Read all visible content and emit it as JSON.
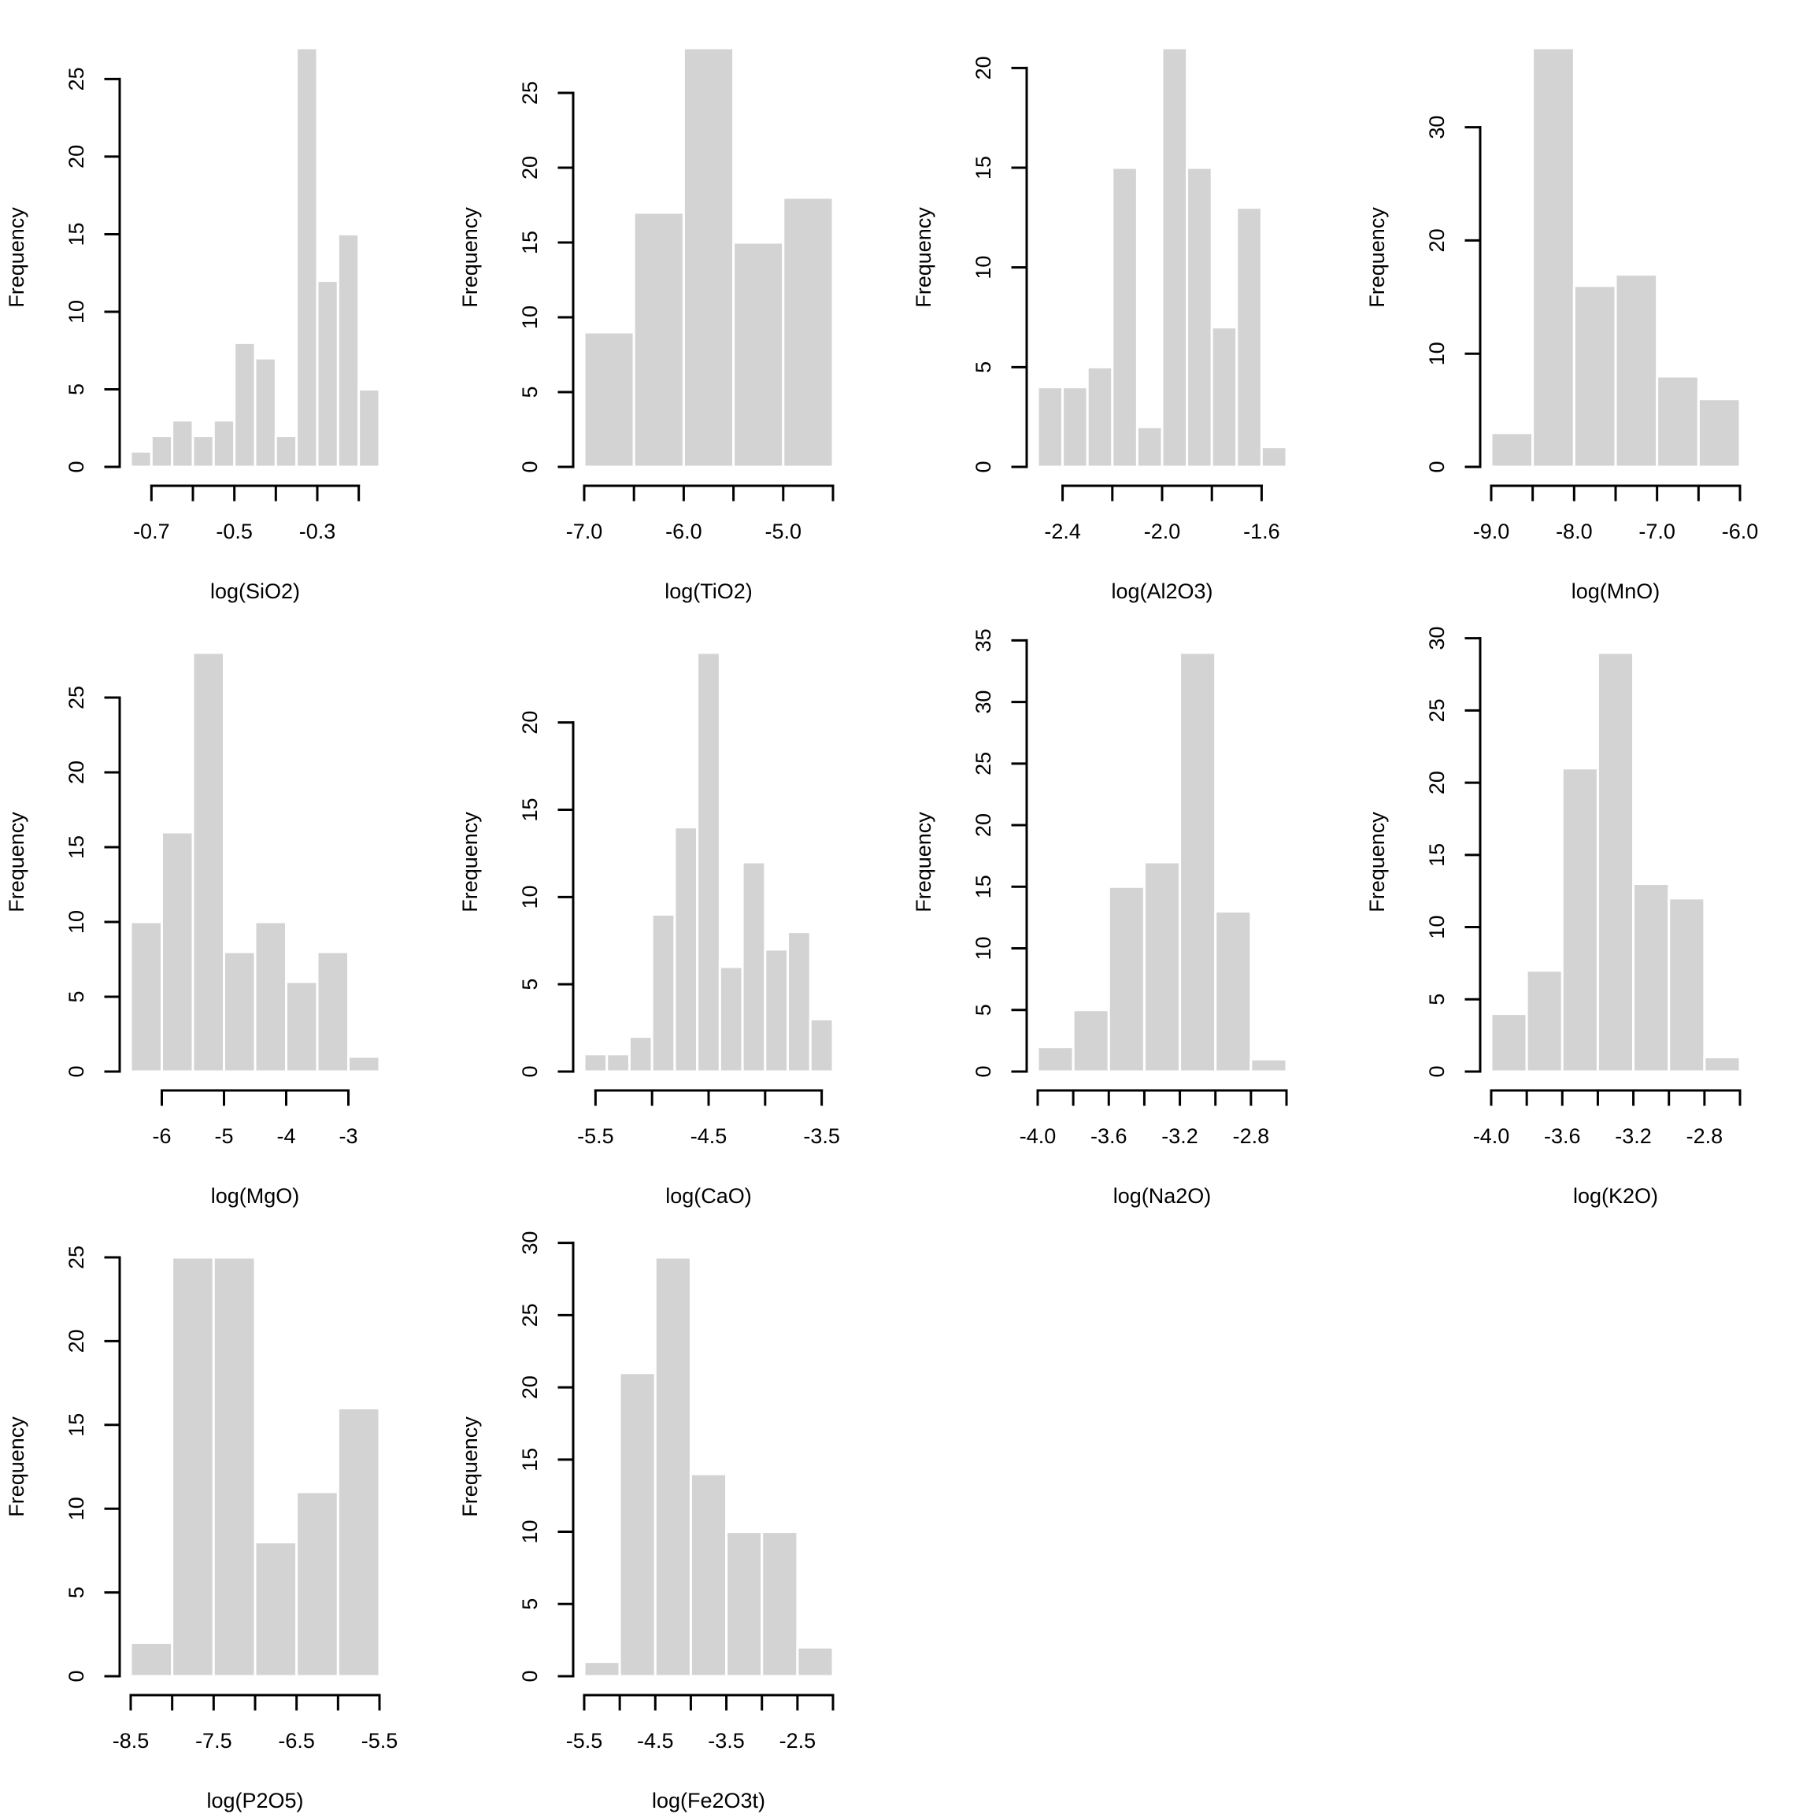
{
  "figure": {
    "layout": "3x4 grid of histograms",
    "bar_color": "#d3d3d3",
    "bar_border_color": "#ffffff",
    "axis_color": "#000000"
  },
  "chart_data": [
    {
      "type": "bar",
      "subtype": "histogram",
      "title": "",
      "xlabel": "log(SiO2)",
      "ylabel": "Frequency",
      "bin_edges": [
        -0.75,
        -0.7,
        -0.65,
        -0.6,
        -0.55,
        -0.5,
        -0.45,
        -0.4,
        -0.35,
        -0.3,
        -0.25,
        -0.2,
        -0.15
      ],
      "values": [
        1,
        2,
        3,
        2,
        3,
        8,
        7,
        2,
        27,
        12,
        15,
        5
      ],
      "x_ticks": [
        -0.7,
        -0.6,
        -0.5,
        -0.4,
        -0.3,
        -0.2
      ],
      "x_tick_labels": [
        "-0.7",
        "",
        "-0.5",
        "",
        "-0.3",
        ""
      ],
      "y_ticks": [
        0,
        5,
        10,
        15,
        20,
        25
      ],
      "y_tick_labels": [
        "0",
        "5",
        "10",
        "15",
        "20",
        "25"
      ],
      "xlim": [
        -0.75,
        -0.15
      ],
      "ylim": [
        0,
        27
      ],
      "grid": false
    },
    {
      "type": "bar",
      "subtype": "histogram",
      "title": "",
      "xlabel": "log(TiO2)",
      "ylabel": "Frequency",
      "bin_edges": [
        -7.0,
        -6.5,
        -6.0,
        -5.5,
        -5.0,
        -4.5
      ],
      "values": [
        9,
        17,
        28,
        15,
        18
      ],
      "x_ticks": [
        -7.0,
        -6.5,
        -6.0,
        -5.5,
        -5.0,
        -4.5
      ],
      "x_tick_labels": [
        "-7.0",
        "",
        "-6.0",
        "",
        "-5.0",
        ""
      ],
      "y_ticks": [
        0,
        5,
        10,
        15,
        20,
        25
      ],
      "y_tick_labels": [
        "0",
        "5",
        "10",
        "15",
        "20",
        "25"
      ],
      "xlim": [
        -7.0,
        -4.5
      ],
      "ylim": [
        0,
        28
      ],
      "grid": false
    },
    {
      "type": "bar",
      "subtype": "histogram",
      "title": "",
      "xlabel": "log(Al2O3)",
      "ylabel": "Frequency",
      "bin_edges": [
        -2.5,
        -2.4,
        -2.3,
        -2.2,
        -2.1,
        -2.0,
        -1.9,
        -1.8,
        -1.7,
        -1.6,
        -1.5
      ],
      "values": [
        4,
        4,
        5,
        15,
        2,
        21,
        15,
        7,
        13,
        1
      ],
      "x_ticks": [
        -2.4,
        -2.2,
        -2.0,
        -1.8,
        -1.6
      ],
      "x_tick_labels": [
        "-2.4",
        "",
        "-2.0",
        "",
        "-1.6"
      ],
      "y_ticks": [
        0,
        5,
        10,
        15,
        20
      ],
      "y_tick_labels": [
        "0",
        "5",
        "10",
        "15",
        "20"
      ],
      "xlim": [
        -2.5,
        -1.5
      ],
      "ylim": [
        0,
        21
      ],
      "grid": false
    },
    {
      "type": "bar",
      "subtype": "histogram",
      "title": "",
      "xlabel": "log(MnO)",
      "ylabel": "Frequency",
      "bin_edges": [
        -9.0,
        -8.5,
        -8.0,
        -7.5,
        -7.0,
        -6.5,
        -6.0
      ],
      "values": [
        3,
        37,
        16,
        17,
        8,
        6
      ],
      "x_ticks": [
        -9.0,
        -8.5,
        -8.0,
        -7.5,
        -7.0,
        -6.5,
        -6.0
      ],
      "x_tick_labels": [
        "-9.0",
        "",
        "-8.0",
        "",
        "-7.0",
        "",
        "-6.0"
      ],
      "y_ticks": [
        0,
        10,
        20,
        30
      ],
      "y_tick_labels": [
        "0",
        "10",
        "20",
        "30"
      ],
      "xlim": [
        -9.0,
        -6.0
      ],
      "ylim": [
        0,
        37
      ],
      "grid": false
    },
    {
      "type": "bar",
      "subtype": "histogram",
      "title": "",
      "xlabel": "log(MgO)",
      "ylabel": "Frequency",
      "bin_edges": [
        -6.5,
        -6.0,
        -5.5,
        -5.0,
        -4.5,
        -4.0,
        -3.5,
        -3.0,
        -2.5
      ],
      "values": [
        10,
        16,
        28,
        8,
        10,
        6,
        8,
        1
      ],
      "x_ticks": [
        -6,
        -5,
        -4,
        -3
      ],
      "x_tick_labels": [
        "-6",
        "-5",
        "-4",
        "-3"
      ],
      "y_ticks": [
        0,
        5,
        10,
        15,
        20,
        25
      ],
      "y_tick_labels": [
        "0",
        "5",
        "10",
        "15",
        "20",
        "25"
      ],
      "xlim": [
        -6.5,
        -2.5
      ],
      "ylim": [
        0,
        28
      ],
      "grid": false
    },
    {
      "type": "bar",
      "subtype": "histogram",
      "title": "",
      "xlabel": "log(CaO)",
      "ylabel": "Frequency",
      "bin_edges": [
        -5.6,
        -5.4,
        -5.2,
        -5.0,
        -4.8,
        -4.6,
        -4.4,
        -4.2,
        -4.0,
        -3.8,
        -3.6,
        -3.4
      ],
      "values": [
        1,
        1,
        2,
        9,
        14,
        24,
        6,
        12,
        7,
        8,
        3
      ],
      "x_ticks": [
        -5.5,
        -5.0,
        -4.5,
        -4.0,
        -3.5
      ],
      "x_tick_labels": [
        "-5.5",
        "",
        "-4.5",
        "",
        "-3.5"
      ],
      "y_ticks": [
        0,
        5,
        10,
        15,
        20
      ],
      "y_tick_labels": [
        "0",
        "5",
        "10",
        "15",
        "20"
      ],
      "xlim": [
        -5.6,
        -3.4
      ],
      "ylim": [
        0,
        24
      ],
      "grid": false
    },
    {
      "type": "bar",
      "subtype": "histogram",
      "title": "",
      "xlabel": "log(Na2O)",
      "ylabel": "Frequency",
      "bin_edges": [
        -4.0,
        -3.8,
        -3.6,
        -3.4,
        -3.2,
        -3.0,
        -2.8,
        -2.6
      ],
      "values": [
        2,
        5,
        15,
        17,
        34,
        13,
        1
      ],
      "x_ticks": [
        -4.0,
        -3.8,
        -3.6,
        -3.4,
        -3.2,
        -3.0,
        -2.8,
        -2.6
      ],
      "x_tick_labels": [
        "-4.0",
        "",
        "-3.6",
        "",
        "-3.2",
        "",
        "-2.8",
        ""
      ],
      "y_ticks": [
        0,
        5,
        10,
        15,
        20,
        25,
        30,
        35
      ],
      "y_tick_labels": [
        "0",
        "5",
        "10",
        "15",
        "20",
        "25",
        "30",
        "35"
      ],
      "xlim": [
        -4.0,
        -2.6
      ],
      "ylim": [
        0,
        34
      ],
      "grid": false
    },
    {
      "type": "bar",
      "subtype": "histogram",
      "title": "",
      "xlabel": "log(K2O)",
      "ylabel": "Frequency",
      "bin_edges": [
        -4.0,
        -3.8,
        -3.6,
        -3.4,
        -3.2,
        -3.0,
        -2.8,
        -2.6
      ],
      "values": [
        4,
        7,
        21,
        29,
        13,
        12,
        1
      ],
      "x_ticks": [
        -4.0,
        -3.8,
        -3.6,
        -3.4,
        -3.2,
        -3.0,
        -2.8,
        -2.6
      ],
      "x_tick_labels": [
        "-4.0",
        "",
        "-3.6",
        "",
        "-3.2",
        "",
        "-2.8",
        ""
      ],
      "y_ticks": [
        0,
        5,
        10,
        15,
        20,
        25,
        30
      ],
      "y_tick_labels": [
        "0",
        "5",
        "10",
        "15",
        "20",
        "25",
        "30"
      ],
      "xlim": [
        -4.0,
        -2.6
      ],
      "ylim": [
        0,
        29
      ],
      "grid": false
    },
    {
      "type": "bar",
      "subtype": "histogram",
      "title": "",
      "xlabel": "log(P2O5)",
      "ylabel": "Frequency",
      "bin_edges": [
        -8.5,
        -8.0,
        -7.5,
        -7.0,
        -6.5,
        -6.0,
        -5.5
      ],
      "values": [
        2,
        25,
        25,
        8,
        11,
        16
      ],
      "x_ticks": [
        -8.5,
        -8.0,
        -7.5,
        -7.0,
        -6.5,
        -6.0,
        -5.5
      ],
      "x_tick_labels": [
        "-8.5",
        "",
        "-7.5",
        "",
        "-6.5",
        "",
        "-5.5"
      ],
      "y_ticks": [
        0,
        5,
        10,
        15,
        20,
        25
      ],
      "y_tick_labels": [
        "0",
        "5",
        "10",
        "15",
        "20",
        "25"
      ],
      "xlim": [
        -8.5,
        -5.5
      ],
      "ylim": [
        0,
        25
      ],
      "grid": false
    },
    {
      "type": "bar",
      "subtype": "histogram",
      "title": "",
      "xlabel": "log(Fe2O3t)",
      "ylabel": "Frequency",
      "bin_edges": [
        -5.5,
        -5.0,
        -4.5,
        -4.0,
        -3.5,
        -3.0,
        -2.5,
        -2.0
      ],
      "values": [
        1,
        21,
        29,
        14,
        10,
        10,
        2
      ],
      "x_ticks": [
        -5.5,
        -5.0,
        -4.5,
        -4.0,
        -3.5,
        -3.0,
        -2.5,
        -2.0
      ],
      "x_tick_labels": [
        "-5.5",
        "",
        "-4.5",
        "",
        "-3.5",
        "",
        "-2.5",
        ""
      ],
      "y_ticks": [
        0,
        5,
        10,
        15,
        20,
        25,
        30
      ],
      "y_tick_labels": [
        "0",
        "5",
        "10",
        "15",
        "20",
        "25",
        "30"
      ],
      "xlim": [
        -5.5,
        -2.0
      ],
      "ylim": [
        0,
        29
      ],
      "grid": false
    }
  ]
}
